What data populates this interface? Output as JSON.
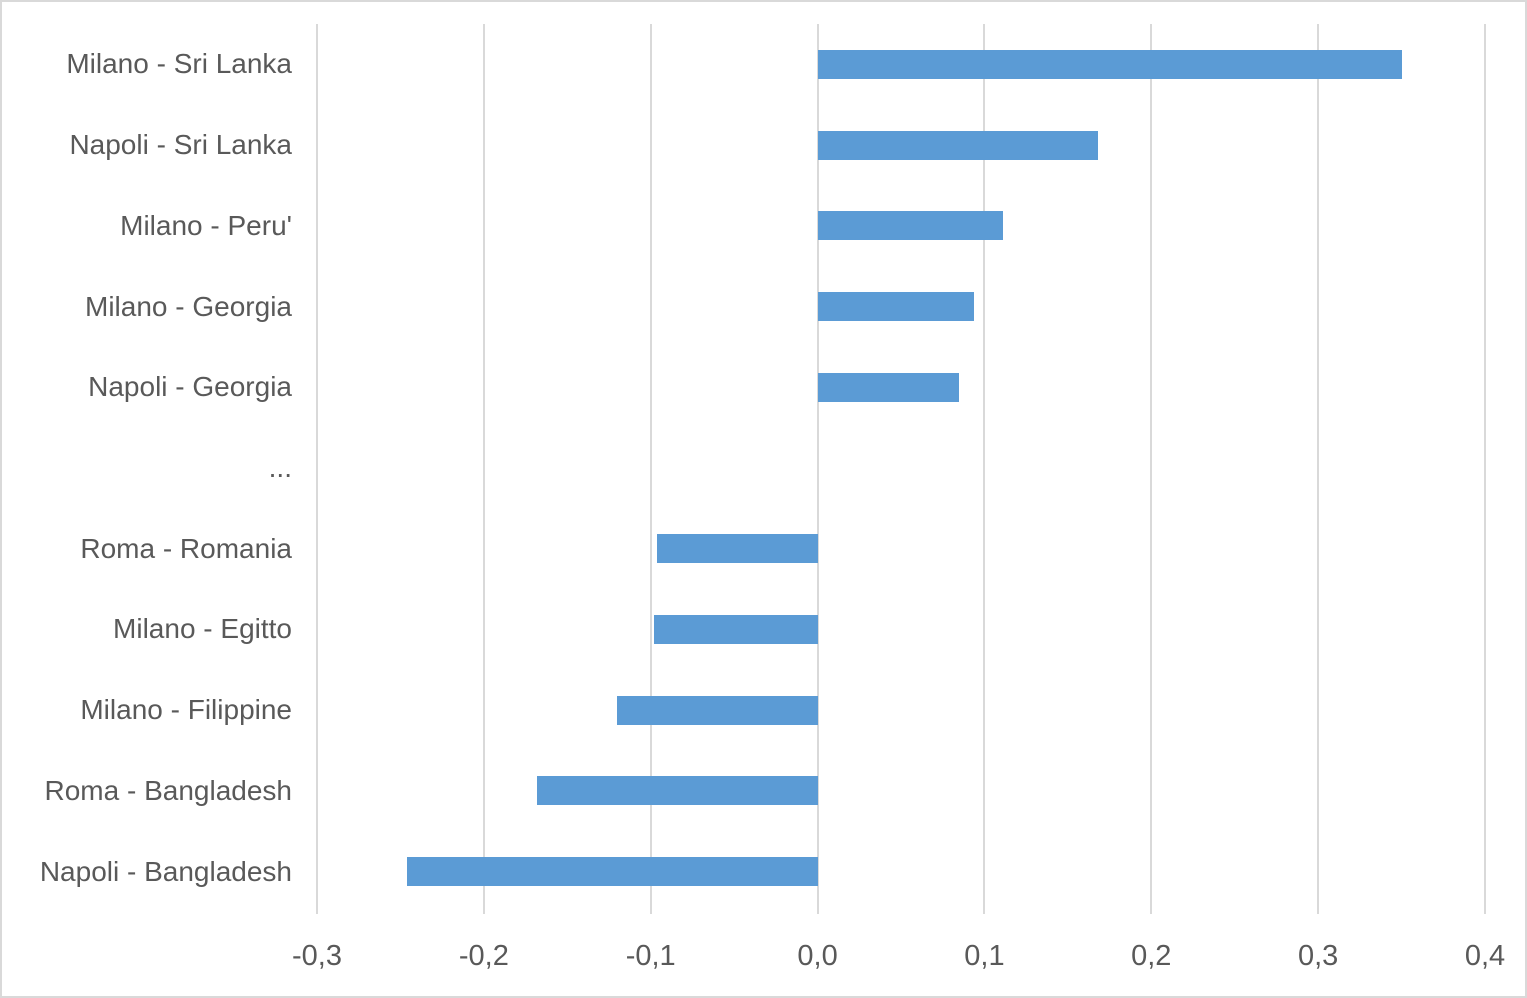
{
  "chart_data": {
    "type": "bar",
    "orientation": "horizontal",
    "title": "",
    "categories": [
      "Milano - Sri Lanka",
      "Napoli - Sri Lanka",
      "Milano - Peru'",
      "Milano - Georgia",
      "Napoli - Georgia",
      "...",
      "Roma - Romania",
      "Milano - Egitto",
      "Milano - Filippine",
      "Roma - Bangladesh",
      "Napoli - Bangladesh"
    ],
    "values": [
      0.35,
      0.168,
      0.111,
      0.094,
      0.085,
      null,
      -0.096,
      -0.098,
      -0.12,
      -0.168,
      -0.246
    ],
    "xlim": [
      -0.3,
      0.4
    ],
    "xticks": [
      -0.3,
      -0.2,
      -0.1,
      0.0,
      0.1,
      0.2,
      0.3,
      0.4
    ],
    "xtick_labels": [
      "-0,3",
      "-0,2",
      "-0,1",
      "0,0",
      "0,1",
      "0,2",
      "0,3",
      "0,4"
    ],
    "decimal_separator": ",",
    "grid": true,
    "legend": false,
    "xlabel": "",
    "ylabel": "",
    "colors": {
      "bar": "#5b9bd5",
      "gridline": "#d9d9d9",
      "text": "#595959",
      "background": "#ffffff",
      "frame_border": "#d9d9d9"
    }
  }
}
